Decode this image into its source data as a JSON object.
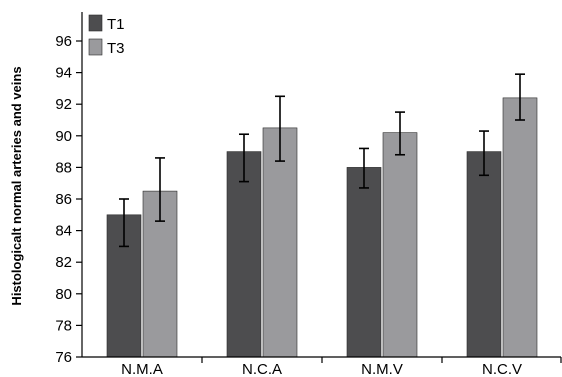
{
  "chart_data": {
    "type": "bar",
    "title": "",
    "xlabel": "",
    "ylabel": "Histologicalt normal arteries and veins",
    "categories": [
      "N.M.A",
      "N.C.A",
      "N.M.V",
      "N.C.V"
    ],
    "ylim": [
      76,
      97
    ],
    "yticks": [
      76,
      78,
      80,
      82,
      84,
      86,
      88,
      90,
      92,
      94,
      96
    ],
    "grid": false,
    "legend_position": "top-left",
    "series": [
      {
        "name": "T1",
        "color": "#4d4d4f",
        "values": [
          85.0,
          89.0,
          88.0,
          89.0
        ],
        "error_low": [
          83.0,
          87.1,
          86.7,
          87.5
        ],
        "error_high": [
          86.0,
          90.1,
          89.2,
          90.3
        ]
      },
      {
        "name": "T3",
        "color": "#9a9a9d",
        "values": [
          86.5,
          90.5,
          90.2,
          92.4
        ],
        "error_low": [
          84.6,
          88.4,
          88.8,
          91.0
        ],
        "error_high": [
          88.6,
          92.5,
          91.5,
          93.9
        ]
      }
    ]
  }
}
